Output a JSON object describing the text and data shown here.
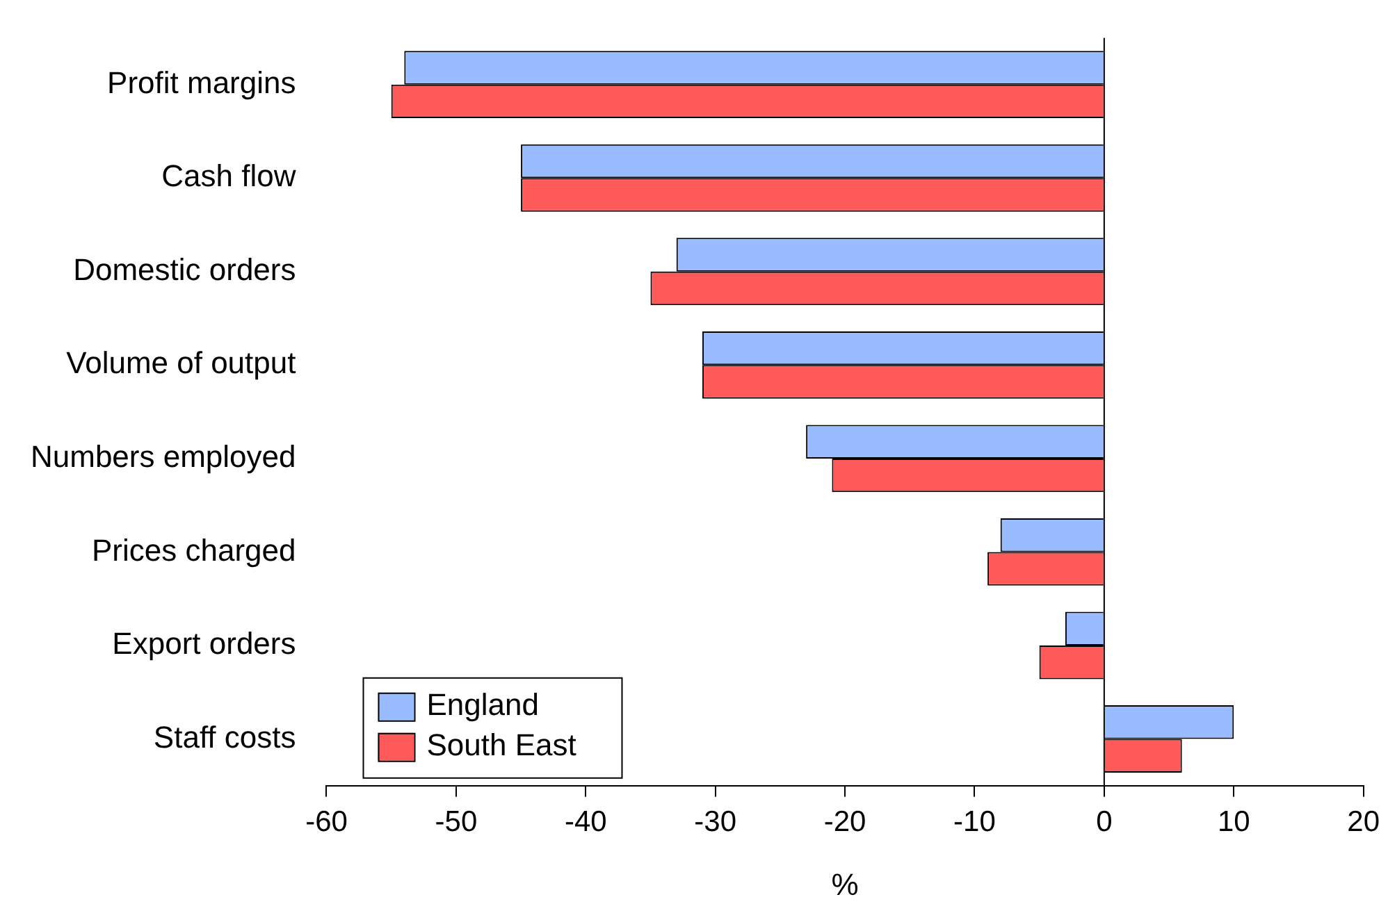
{
  "chart_data": {
    "type": "bar",
    "orientation": "horizontal",
    "xlabel": "%",
    "categories": [
      "Profit margins",
      "Cash flow",
      "Domestic orders",
      "Volume of output",
      "Numbers employed",
      "Prices charged",
      "Export orders",
      "Staff costs"
    ],
    "series": [
      {
        "name": "England",
        "color": "#99bbff",
        "values": [
          -54,
          -45,
          -33,
          -31,
          -23,
          -8,
          -3,
          10
        ]
      },
      {
        "name": "South East",
        "color": "#ff5a5a",
        "values": [
          -55,
          -45,
          -35,
          -31,
          -21,
          -9,
          -5,
          6
        ]
      }
    ],
    "xlim": [
      -60,
      20
    ],
    "xticks": [
      -60,
      -50,
      -40,
      -30,
      -20,
      -10,
      0,
      10,
      20
    ],
    "ref_lines": [
      {
        "axis": "x",
        "value": 0,
        "color": "#000000"
      }
    ],
    "legend": "bottom left"
  }
}
